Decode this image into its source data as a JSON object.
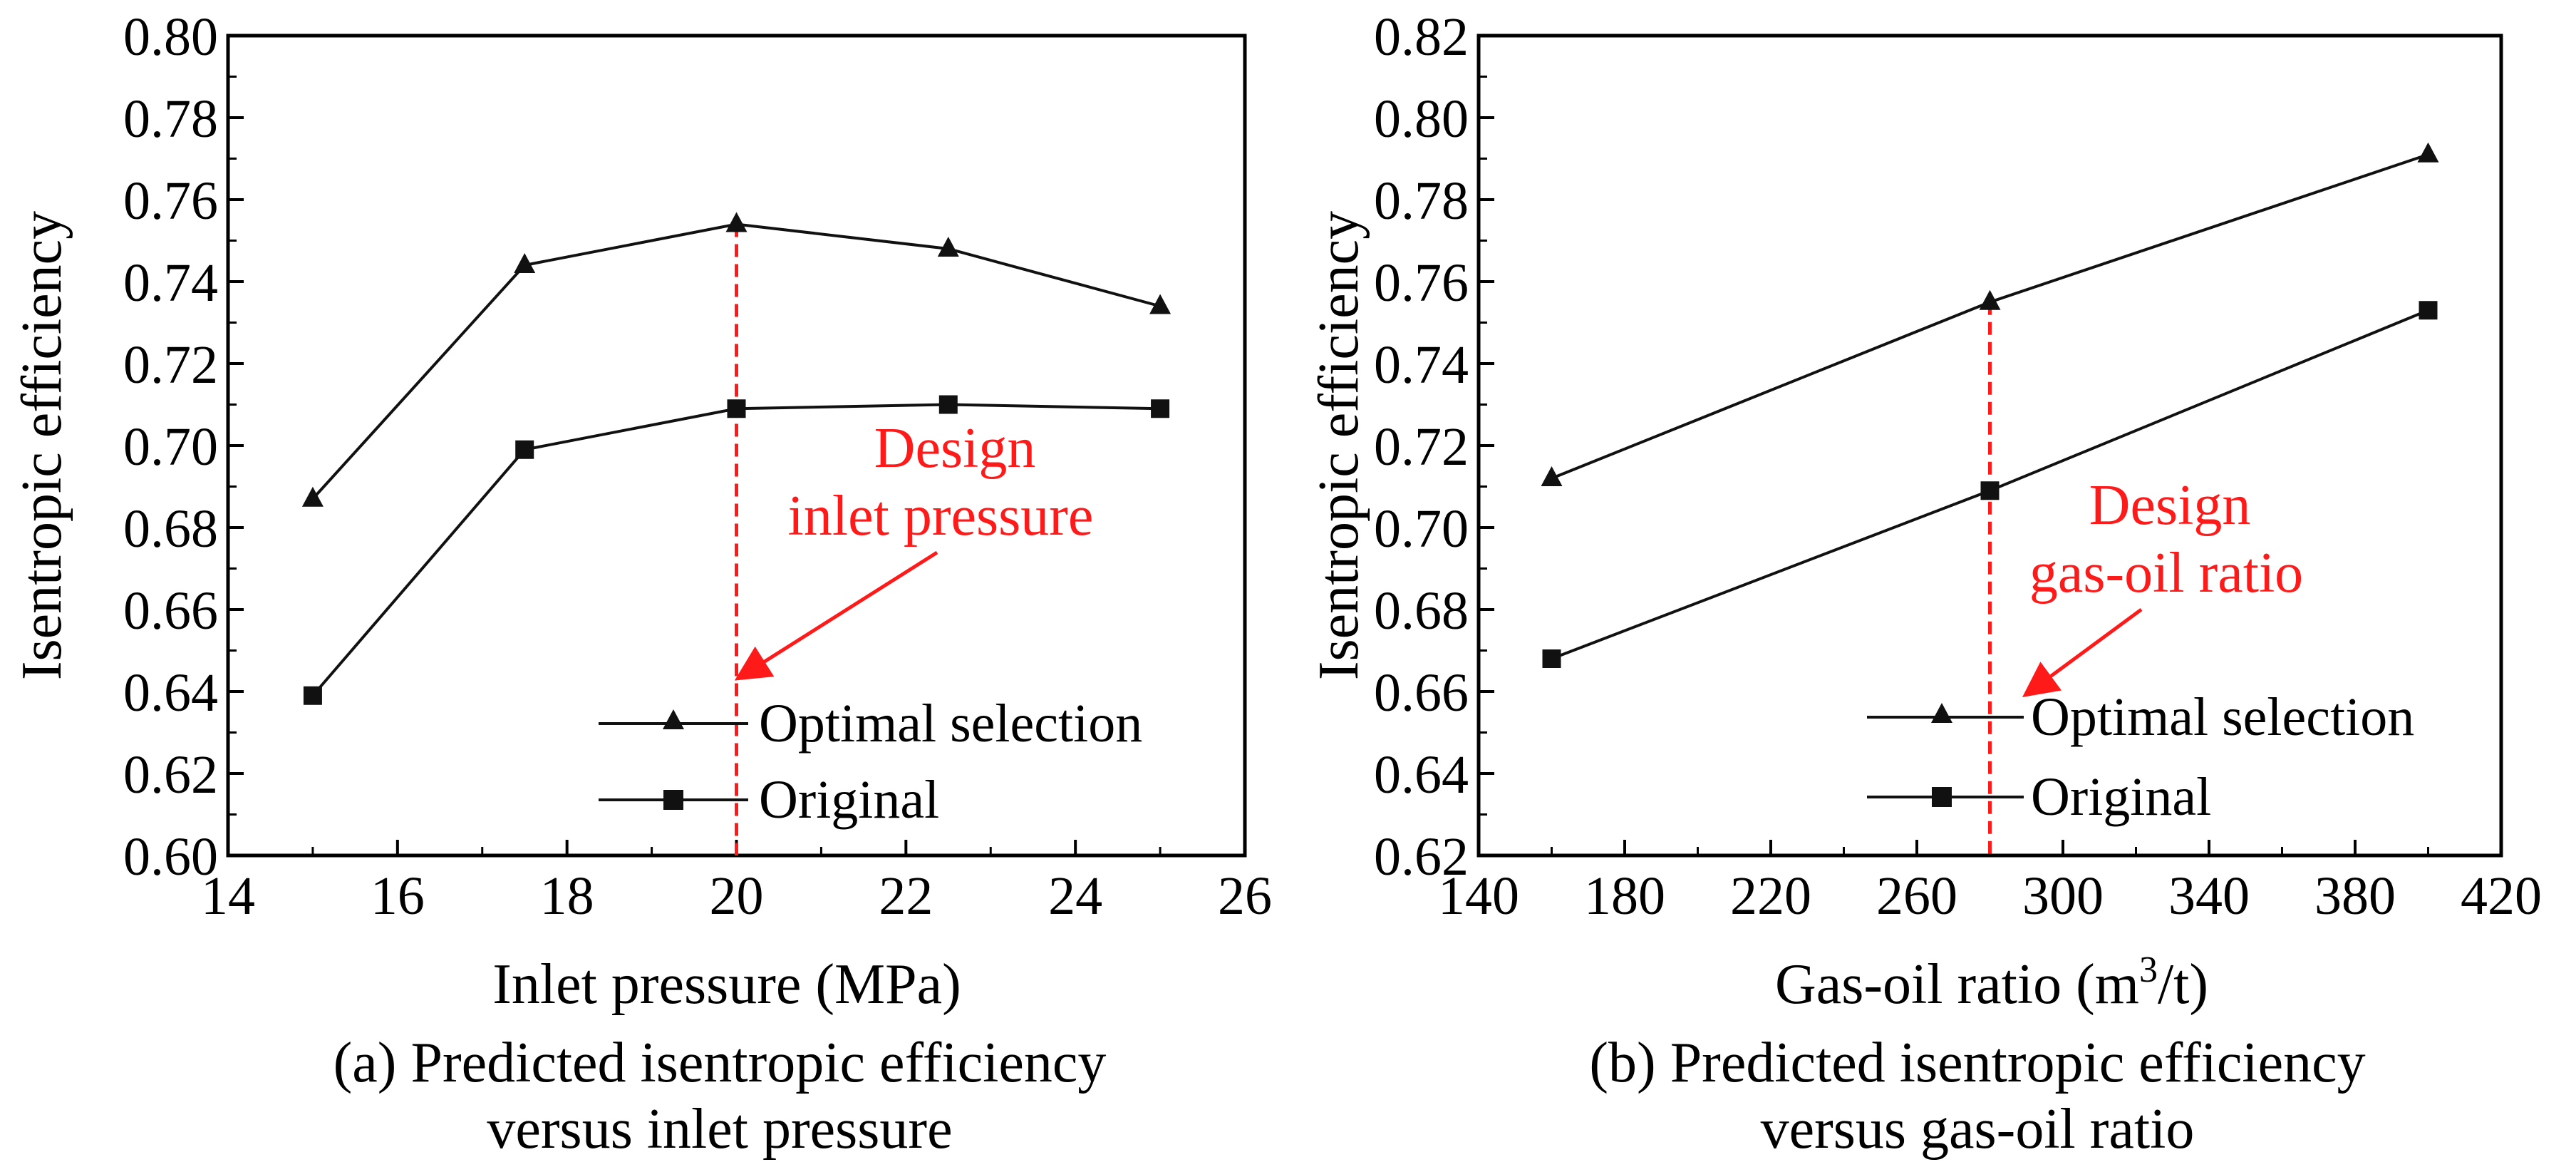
{
  "colors": {
    "series": "#111111",
    "annotation": "#ff1a1a",
    "axis": "#000000"
  },
  "chart_data": [
    {
      "type": "line",
      "xlabel": "Inlet pressure (MPa)",
      "ylabel": "Isentropic efficiency",
      "caption_line1": "(a) Predicted isentropic efficiency",
      "caption_line2": "versus inlet pressure",
      "xlim": [
        14,
        26
      ],
      "ylim": [
        0.6,
        0.8
      ],
      "xticks": [
        "14",
        "16",
        "18",
        "20",
        "22",
        "24",
        "26"
      ],
      "yticks": [
        "0.60",
        "0.62",
        "0.64",
        "0.66",
        "0.68",
        "0.70",
        "0.72",
        "0.74",
        "0.76",
        "0.78",
        "0.80"
      ],
      "x": [
        15,
        17.5,
        20,
        22.5,
        25
      ],
      "series": [
        {
          "name": "Optimal selection",
          "marker": "triangle",
          "values": [
            0.687,
            0.744,
            0.754,
            0.748,
            0.734
          ]
        },
        {
          "name": "Original",
          "marker": "square",
          "values": [
            0.639,
            0.699,
            0.709,
            0.71,
            0.709
          ]
        }
      ],
      "annotation": {
        "line1": "Design",
        "line2": "inlet pressure",
        "x": 20
      },
      "legend_position": "bottom-right",
      "grid": false
    },
    {
      "type": "line",
      "xlabel": "Gas-oil ratio (m",
      "xlabel_sup": "3",
      "xlabel_tail": "/t)",
      "ylabel": "Isentropic efficiency",
      "caption_line1": "(b) Predicted isentropic efficiency",
      "caption_line2": "versus gas-oil ratio",
      "xlim": [
        140,
        420
      ],
      "ylim": [
        0.62,
        0.82
      ],
      "xticks": [
        "140",
        "180",
        "220",
        "260",
        "300",
        "340",
        "380",
        "420"
      ],
      "yticks": [
        "0.62",
        "0.64",
        "0.66",
        "0.68",
        "0.70",
        "0.72",
        "0.74",
        "0.76",
        "0.78",
        "0.80",
        "0.82"
      ],
      "x": [
        160,
        280,
        400
      ],
      "series": [
        {
          "name": "Optimal selection",
          "marker": "triangle",
          "values": [
            0.712,
            0.755,
            0.791
          ]
        },
        {
          "name": "Original",
          "marker": "square",
          "values": [
            0.668,
            0.709,
            0.753
          ]
        }
      ],
      "annotation": {
        "line1": "Design",
        "line2": "gas-oil ratio",
        "x": 280
      },
      "legend_position": "bottom-right",
      "grid": false
    }
  ]
}
